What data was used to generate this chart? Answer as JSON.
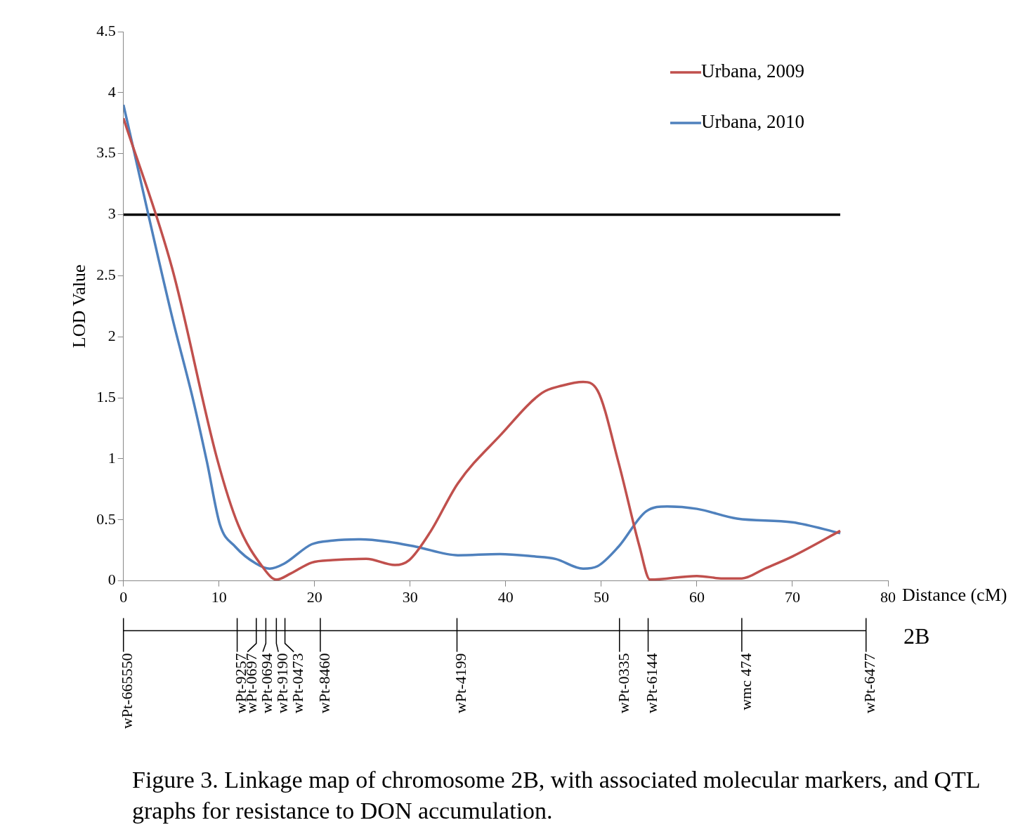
{
  "chart_data": {
    "type": "line",
    "xlabel": "Distance (cM)",
    "ylabel": "LOD Value",
    "xlim": [
      0,
      80
    ],
    "xticks": [
      0,
      10,
      20,
      30,
      40,
      50,
      60,
      70,
      80
    ],
    "ylim": [
      0,
      4.5
    ],
    "yticks": [
      0,
      0.5,
      1,
      1.5,
      2,
      2.5,
      3,
      3.5,
      4,
      4.5
    ],
    "grid": false,
    "legend": "top right",
    "marker": "none",
    "series": [
      {
        "name": "Urbana, 2009",
        "color": "#c0504d",
        "x": [
          0,
          5.1,
          9.8,
          12,
          14.6,
          16,
          17.5,
          19.7,
          21.9,
          25.4,
          28.4,
          29.9,
          32.1,
          35,
          39.4,
          43.8,
          45.9,
          48.1,
          49.6,
          51.8,
          54,
          55.1,
          56.6,
          58.4,
          60,
          62.7,
          64.7,
          67.1,
          70,
          75
        ],
        "values": [
          3.79,
          2.56,
          1.0,
          0.46,
          0.11,
          0.01,
          0.06,
          0.15,
          0.17,
          0.18,
          0.13,
          0.17,
          0.4,
          0.8,
          1.19,
          1.54,
          1.6,
          1.63,
          1.56,
          0.97,
          0.28,
          0.01,
          null,
          null,
          0.04,
          0.02,
          0.02,
          0.1,
          0.2,
          0.41
        ]
      },
      {
        "name": "Urbana, 2010",
        "color": "#4f81bd",
        "x": [
          0,
          5.1,
          7.3,
          8.75,
          10.1,
          11.7,
          13.9,
          15.3,
          16.8,
          19.7,
          21.9,
          24.8,
          27.7,
          30.6,
          35,
          39.4,
          43,
          45.2,
          48.1,
          49.6,
          51.8,
          54.7,
          56.9,
          60,
          64.2,
          70,
          75
        ],
        "values": [
          3.9,
          2.16,
          1.48,
          0.97,
          0.46,
          0.28,
          0.14,
          0.1,
          0.14,
          0.3,
          0.33,
          0.34,
          0.32,
          0.28,
          0.21,
          0.22,
          0.2,
          0.18,
          0.1,
          0.12,
          0.28,
          0.57,
          0.61,
          0.59,
          0.51,
          0.48,
          0.39
        ]
      },
      {
        "color": "#000000",
        "x": [
          0,
          75
        ],
        "values": [
          3,
          3
        ]
      }
    ],
    "ref_lines": [
      {
        "axis": "x",
        "value": 0,
        "label": "wPt-665550"
      },
      {
        "axis": "x",
        "value": 11.9,
        "label": "wPt-9257"
      },
      {
        "axis": "x",
        "value": 13.9,
        "label": "wPt-0697"
      },
      {
        "axis": "x",
        "value": 14.9,
        "label": "wPt-0694"
      },
      {
        "axis": "x",
        "value": 16.0,
        "label": "wPt-9190"
      },
      {
        "axis": "x",
        "value": 16.9,
        "label": "wPt-0473"
      },
      {
        "axis": "x",
        "value": 20.6,
        "label": "wPt-8460"
      },
      {
        "axis": "x",
        "value": 34.9,
        "label": "wPt-4199"
      },
      {
        "axis": "x",
        "value": 51.9,
        "label": "wPt-0335"
      },
      {
        "axis": "x",
        "value": 54.9,
        "label": "wPt-6144"
      },
      {
        "axis": "x",
        "value": 64.7,
        "label": "wmc 474"
      },
      {
        "axis": "x",
        "value": 77.7,
        "label": "wPt-6477"
      }
    ],
    "annotations": [
      "2B",
      "Figure 3. Linkage map of chromosome 2B, with associated molecular markers, and QTL graphs for resistance to DON accumulation."
    ]
  }
}
